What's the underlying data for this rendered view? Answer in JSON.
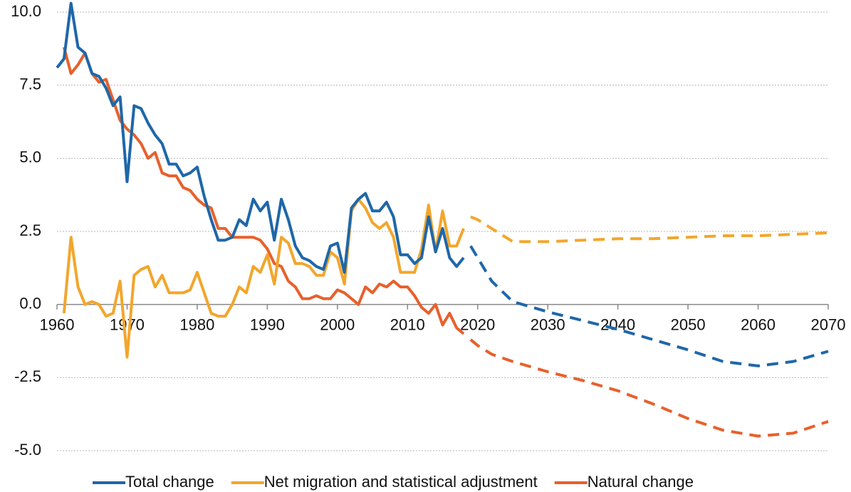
{
  "chart_data": {
    "type": "line",
    "xlim": [
      1960,
      2070
    ],
    "xticks": [
      1960,
      1970,
      1980,
      1990,
      2000,
      2010,
      2020,
      2030,
      2040,
      2050,
      2060,
      2070
    ],
    "ylim": [
      -5.8,
      10.4
    ],
    "yticks": [
      {
        "value": 10,
        "label": "10.0"
      },
      7.5,
      {
        "value": 5,
        "label": "5.0"
      },
      2.5,
      {
        "value": 0,
        "label": "0.0"
      },
      -2.5,
      {
        "value": -5,
        "label": "-5.0"
      }
    ],
    "grid": true,
    "legend": "bottom",
    "x": [
      1960,
      1961,
      1962,
      1963,
      1964,
      1965,
      1966,
      1967,
      1968,
      1969,
      1970,
      1971,
      1972,
      1973,
      1974,
      1975,
      1976,
      1977,
      1978,
      1979,
      1980,
      1981,
      1982,
      1983,
      1984,
      1985,
      1986,
      1987,
      1988,
      1989,
      1990,
      1991,
      1992,
      1993,
      1994,
      1995,
      1996,
      1997,
      1998,
      1999,
      2000,
      2001,
      2002,
      2003,
      2004,
      2005,
      2006,
      2007,
      2008,
      2009,
      2010,
      2011,
      2012,
      2013,
      2014,
      2015,
      2016,
      2017,
      2018
    ],
    "projection_x": [
      2019,
      2020,
      2022,
      2025,
      2030,
      2035,
      2040,
      2045,
      2050,
      2055,
      2060,
      2065,
      2070
    ],
    "series": [
      {
        "name": "Total change",
        "color": "#1f67a8",
        "values": [
          8.1,
          8.4,
          10.3,
          8.8,
          8.6,
          7.9,
          7.8,
          7.4,
          6.8,
          7.1,
          4.2,
          6.8,
          6.7,
          6.2,
          5.8,
          5.5,
          4.8,
          4.8,
          4.4,
          4.5,
          4.7,
          3.7,
          2.9,
          2.2,
          2.2,
          2.3,
          2.9,
          2.7,
          3.6,
          3.2,
          3.5,
          2.2,
          3.6,
          2.9,
          2.0,
          1.6,
          1.5,
          1.3,
          1.2,
          2.0,
          2.1,
          1.1,
          3.3,
          3.6,
          3.8,
          3.2,
          3.2,
          3.5,
          3.0,
          1.7,
          1.7,
          1.4,
          1.6,
          3.0,
          1.8,
          2.6,
          1.6,
          1.3,
          1.6
        ],
        "projection": [
          2.0,
          1.6,
          0.8,
          0.1,
          -0.25,
          -0.55,
          -0.85,
          -1.2,
          -1.55,
          -1.95,
          -2.1,
          -1.95,
          -1.6
        ]
      },
      {
        "name": "Net migration and statistical adjustment",
        "color": "#f2a62c",
        "values": [
          null,
          -0.3,
          2.3,
          0.6,
          0.0,
          0.1,
          0.0,
          -0.4,
          -0.3,
          0.8,
          -1.8,
          1.0,
          1.2,
          1.3,
          0.6,
          1.0,
          0.4,
          0.4,
          0.4,
          0.5,
          1.1,
          0.4,
          -0.3,
          -0.4,
          -0.4,
          0.0,
          0.6,
          0.4,
          1.3,
          1.1,
          1.7,
          0.7,
          2.3,
          2.1,
          1.4,
          1.4,
          1.3,
          1.0,
          1.0,
          1.8,
          1.6,
          0.7,
          3.2,
          3.6,
          3.3,
          2.8,
          2.6,
          2.8,
          2.3,
          1.1,
          1.1,
          1.1,
          1.9,
          3.4,
          1.8,
          3.2,
          2.0,
          2.0,
          2.6
        ],
        "projection": [
          3.0,
          2.9,
          2.6,
          2.15,
          2.15,
          2.2,
          2.25,
          2.25,
          2.3,
          2.35,
          2.35,
          2.4,
          2.45
        ]
      },
      {
        "name": "Natural change",
        "color": "#e8602c",
        "values": [
          null,
          8.8,
          7.9,
          8.2,
          8.6,
          7.9,
          7.6,
          7.7,
          7.0,
          6.3,
          6.0,
          5.8,
          5.5,
          5.0,
          5.2,
          4.5,
          4.4,
          4.4,
          4.0,
          3.9,
          3.6,
          3.4,
          3.3,
          2.6,
          2.6,
          2.3,
          2.3,
          2.3,
          2.3,
          2.2,
          1.9,
          1.4,
          1.3,
          0.8,
          0.6,
          0.2,
          0.2,
          0.3,
          0.2,
          0.2,
          0.5,
          0.4,
          0.2,
          0.0,
          0.6,
          0.4,
          0.7,
          0.6,
          0.8,
          0.6,
          0.6,
          0.3,
          -0.1,
          -0.3,
          0.0,
          -0.7,
          -0.3,
          -0.8,
          -1.0
        ],
        "projection": [
          -1.2,
          -1.4,
          -1.7,
          -1.95,
          -2.3,
          -2.6,
          -2.95,
          -3.4,
          -3.9,
          -4.3,
          -4.5,
          -4.4,
          -4.0
        ]
      }
    ]
  }
}
